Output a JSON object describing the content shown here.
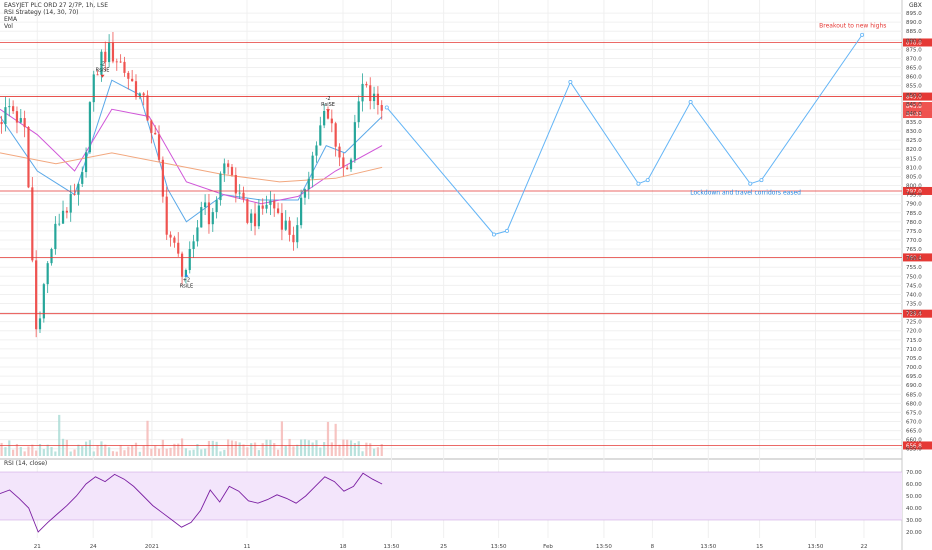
{
  "header": {
    "symbol_line": "EASYJET PLC ORD 27 2/7P, 1h, LSE",
    "indicator1": "RSI Strategy (14, 30, 70)",
    "indicator2": "EMA",
    "indicator3": "Vol"
  },
  "currency_label": "GBX",
  "rsi_label": "RSI (14, close)",
  "chart_data": {
    "type": "candlestick",
    "price_axis": {
      "ylim": [
        651,
        900
      ],
      "ticks": [
        655,
        660,
        665,
        670,
        675,
        680,
        685,
        690,
        695,
        700,
        705,
        710,
        715,
        720,
        725,
        730,
        735,
        740,
        745,
        750,
        755,
        760,
        765,
        770,
        775,
        780,
        785,
        790,
        795,
        800,
        805,
        810,
        815,
        820,
        825,
        830,
        835,
        840,
        845,
        850,
        855,
        860,
        865,
        870,
        875,
        880,
        885,
        890,
        895
      ]
    },
    "rsi_axis": {
      "ylim": [
        15,
        75
      ],
      "ticks": [
        20.0,
        30.0,
        40.0,
        50.0,
        60.0,
        70.0
      ],
      "band": [
        30,
        70
      ]
    },
    "time_axis": [
      "21",
      "24",
      "2021",
      "11",
      "18",
      "13:50",
      "25",
      "13:50",
      "Feb",
      "13:50",
      "8",
      "13:50",
      "15",
      "13:50",
      "22"
    ],
    "horizontal_levels": [
      {
        "label": "878.8",
        "value": 878.8
      },
      {
        "label": "849.0",
        "value": 849.0
      },
      {
        "label": "797.0",
        "value": 797.0
      },
      {
        "label": "760.4",
        "value": 760.4
      },
      {
        "label": "729.4",
        "value": 729.4
      },
      {
        "label": "656.8",
        "value": 656.8
      }
    ],
    "current_price": {
      "label": "843.8",
      "value": 843.8
    },
    "countdown": {
      "label": "28:01"
    },
    "projection_path": [
      {
        "t": 0.415,
        "price": 843
      },
      {
        "t": 0.53,
        "price": 773
      },
      {
        "t": 0.544,
        "price": 775
      },
      {
        "t": 0.612,
        "price": 857
      },
      {
        "t": 0.685,
        "price": 801
      },
      {
        "t": 0.695,
        "price": 803
      },
      {
        "t": 0.741,
        "price": 846
      },
      {
        "t": 0.805,
        "price": 801
      },
      {
        "t": 0.817,
        "price": 803
      },
      {
        "t": 0.925,
        "price": 883
      }
    ],
    "annotations": [
      {
        "text": "Breakout to new highs",
        "price": 887,
        "t": 0.915
      },
      {
        "text": "Lockdown and travel corridors eased",
        "price": 795,
        "t": 0.8
      }
    ],
    "signals": [
      {
        "kind": "short",
        "number": "-2",
        "text": "RsiSE",
        "t": 0.11,
        "price": 866
      },
      {
        "kind": "short",
        "number": "-2",
        "text": "RsiSE",
        "t": 0.352,
        "price": 847
      },
      {
        "kind": "long",
        "number": "+2",
        "text": "RsiLE",
        "t": 0.2,
        "price": 747
      }
    ],
    "price_path": [
      {
        "t": 0.0,
        "price": 835
      },
      {
        "t": 0.014,
        "price": 844
      },
      {
        "t": 0.03,
        "price": 828
      },
      {
        "t": 0.041,
        "price": 720
      },
      {
        "t": 0.052,
        "price": 752
      },
      {
        "t": 0.06,
        "price": 772
      },
      {
        "t": 0.07,
        "price": 787
      },
      {
        "t": 0.08,
        "price": 790
      },
      {
        "t": 0.09,
        "price": 800
      },
      {
        "t": 0.1,
        "price": 850
      },
      {
        "t": 0.11,
        "price": 870
      },
      {
        "t": 0.12,
        "price": 874
      },
      {
        "t": 0.13,
        "price": 869
      },
      {
        "t": 0.14,
        "price": 860
      },
      {
        "t": 0.15,
        "price": 852
      },
      {
        "t": 0.16,
        "price": 840
      },
      {
        "t": 0.17,
        "price": 823
      },
      {
        "t": 0.18,
        "price": 780
      },
      {
        "t": 0.19,
        "price": 764
      },
      {
        "t": 0.2,
        "price": 752
      },
      {
        "t": 0.21,
        "price": 764
      },
      {
        "t": 0.22,
        "price": 795
      },
      {
        "t": 0.23,
        "price": 778
      },
      {
        "t": 0.24,
        "price": 812
      },
      {
        "t": 0.25,
        "price": 808
      },
      {
        "t": 0.26,
        "price": 790
      },
      {
        "t": 0.27,
        "price": 782
      },
      {
        "t": 0.28,
        "price": 783
      },
      {
        "t": 0.29,
        "price": 792
      },
      {
        "t": 0.3,
        "price": 786
      },
      {
        "t": 0.31,
        "price": 777
      },
      {
        "t": 0.32,
        "price": 770
      },
      {
        "t": 0.33,
        "price": 802
      },
      {
        "t": 0.34,
        "price": 820
      },
      {
        "t": 0.35,
        "price": 838
      },
      {
        "t": 0.36,
        "price": 832
      },
      {
        "t": 0.37,
        "price": 808
      },
      {
        "t": 0.38,
        "price": 818
      },
      {
        "t": 0.39,
        "price": 855
      },
      {
        "t": 0.4,
        "price": 848
      },
      {
        "t": 0.41,
        "price": 844
      }
    ],
    "ema_series": [
      {
        "name": "ema-fast",
        "color": "#5aa8e8",
        "values": [
          {
            "t": 0.0,
            "price": 838
          },
          {
            "t": 0.04,
            "price": 808
          },
          {
            "t": 0.08,
            "price": 795
          },
          {
            "t": 0.12,
            "price": 858
          },
          {
            "t": 0.15,
            "price": 850
          },
          {
            "t": 0.18,
            "price": 798
          },
          {
            "t": 0.2,
            "price": 780
          },
          {
            "t": 0.24,
            "price": 795
          },
          {
            "t": 0.28,
            "price": 792
          },
          {
            "t": 0.32,
            "price": 792
          },
          {
            "t": 0.35,
            "price": 822
          },
          {
            "t": 0.37,
            "price": 818
          },
          {
            "t": 0.41,
            "price": 838
          }
        ]
      },
      {
        "name": "ema-mid",
        "color": "#d056d8",
        "values": [
          {
            "t": 0.0,
            "price": 842
          },
          {
            "t": 0.04,
            "price": 828
          },
          {
            "t": 0.08,
            "price": 808
          },
          {
            "t": 0.12,
            "price": 842
          },
          {
            "t": 0.16,
            "price": 838
          },
          {
            "t": 0.2,
            "price": 802
          },
          {
            "t": 0.24,
            "price": 795
          },
          {
            "t": 0.28,
            "price": 790
          },
          {
            "t": 0.32,
            "price": 794
          },
          {
            "t": 0.36,
            "price": 808
          },
          {
            "t": 0.41,
            "price": 822
          }
        ]
      },
      {
        "name": "ema-slow",
        "color": "#f2a77e",
        "values": [
          {
            "t": 0.0,
            "price": 818
          },
          {
            "t": 0.06,
            "price": 812
          },
          {
            "t": 0.12,
            "price": 818
          },
          {
            "t": 0.18,
            "price": 812
          },
          {
            "t": 0.24,
            "price": 806
          },
          {
            "t": 0.3,
            "price": 802
          },
          {
            "t": 0.36,
            "price": 804
          },
          {
            "t": 0.41,
            "price": 810
          }
        ]
      }
    ],
    "rsi_values": [
      52,
      55,
      48,
      40,
      20,
      28,
      35,
      42,
      50,
      60,
      66,
      62,
      68,
      64,
      58,
      50,
      42,
      36,
      30,
      24,
      28,
      38,
      55,
      45,
      58,
      54,
      46,
      44,
      47,
      51,
      48,
      44,
      50,
      58,
      66,
      62,
      54,
      58,
      69,
      64,
      60
    ]
  }
}
